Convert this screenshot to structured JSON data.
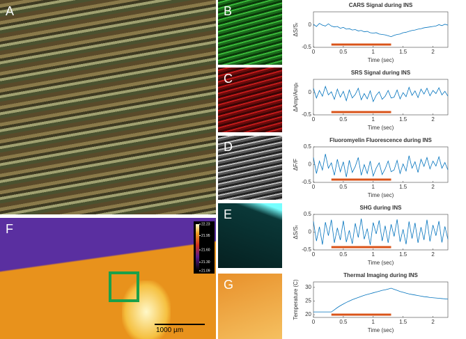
{
  "panels": {
    "A": "A",
    "B": "B",
    "C": "C",
    "D": "D",
    "E": "E",
    "F": "F",
    "G": "G"
  },
  "scale_bar": "1000 µm",
  "colorbar": {
    "lim": [
      21.09,
      22.23
    ],
    "ticks": [
      22.23,
      21.95,
      {
        "value": 21.6,
        "label": "21.60"
      },
      {
        "value": 21.3,
        "label": "21.30"
      },
      21.09
    ]
  },
  "chart_data": [
    {
      "type": "line",
      "title": "CARS Signal during INS",
      "xlabel": "Time (sec)",
      "ylabel": "ΔS/Sᵣ",
      "x": [
        0,
        0.05,
        0.1,
        0.15,
        0.2,
        0.25,
        0.3,
        0.35,
        0.4,
        0.45,
        0.5,
        0.55,
        0.6,
        0.65,
        0.7,
        0.75,
        0.8,
        0.85,
        0.9,
        0.95,
        1,
        1.05,
        1.1,
        1.15,
        1.2,
        1.25,
        1.3,
        1.35,
        1.4,
        1.45,
        1.5,
        1.55,
        1.6,
        1.65,
        1.7,
        1.75,
        1.8,
        1.85,
        1.9,
        1.95,
        2,
        2.05,
        2.1,
        2.15,
        2.2,
        2.25
      ],
      "series": [
        {
          "color": "#0072bd",
          "values": [
            0.02,
            -0.03,
            0.04,
            0.0,
            -0.02,
            0.03,
            -0.02,
            -0.04,
            -0.03,
            -0.07,
            -0.05,
            -0.09,
            -0.08,
            -0.11,
            -0.1,
            -0.13,
            -0.12,
            -0.15,
            -0.14,
            -0.17,
            -0.18,
            -0.17,
            -0.2,
            -0.21,
            -0.22,
            -0.24,
            -0.26,
            -0.23,
            -0.21,
            -0.2,
            -0.17,
            -0.16,
            -0.14,
            -0.12,
            -0.11,
            -0.09,
            -0.08,
            -0.06,
            -0.05,
            -0.04,
            -0.03,
            -0.02,
            0.01,
            -0.01,
            0.02,
            0.0
          ]
        }
      ],
      "xlim": [
        0,
        2.25
      ],
      "xticks": [
        0,
        0.5,
        1,
        1.5,
        2
      ],
      "ylim": [
        -0.5,
        0.3
      ],
      "yticks": [
        -0.5,
        0
      ],
      "highlight_x": [
        0.3,
        1.3
      ],
      "highlight_color": "#d95319"
    },
    {
      "type": "line",
      "title": "SRS Signal during INS",
      "xlabel": "Time (sec)",
      "ylabel": "ΔAmp/Ampᵣ",
      "x": [
        0,
        0.05,
        0.1,
        0.15,
        0.2,
        0.25,
        0.3,
        0.35,
        0.4,
        0.45,
        0.5,
        0.55,
        0.6,
        0.65,
        0.7,
        0.75,
        0.8,
        0.85,
        0.9,
        0.95,
        1,
        1.05,
        1.1,
        1.15,
        1.2,
        1.25,
        1.3,
        1.35,
        1.4,
        1.45,
        1.5,
        1.55,
        1.6,
        1.65,
        1.7,
        1.75,
        1.8,
        1.85,
        1.9,
        1.95,
        2,
        2.05,
        2.1,
        2.15,
        2.2,
        2.25
      ],
      "series": [
        {
          "color": "#0072bd",
          "values": [
            0.1,
            -0.12,
            0.05,
            -0.08,
            0.14,
            -0.05,
            0.02,
            -0.15,
            0.08,
            -0.1,
            0.03,
            -0.18,
            0.06,
            -0.12,
            -0.04,
            0.1,
            -0.16,
            -0.02,
            -0.14,
            0.04,
            -0.2,
            -0.06,
            0.02,
            -0.15,
            -0.08,
            0.05,
            -0.12,
            -0.1,
            0.06,
            -0.14,
            0.0,
            -0.09,
            0.12,
            -0.06,
            0.04,
            -0.11,
            0.08,
            -0.03,
            0.1,
            -0.07,
            0.05,
            -0.02,
            0.11,
            -0.05,
            0.03,
            -0.08
          ]
        }
      ],
      "xlim": [
        0,
        2.25
      ],
      "xticks": [
        0,
        0.5,
        1,
        1.5,
        2
      ],
      "ylim": [
        -0.5,
        0.3
      ],
      "yticks": [
        -0.5,
        0
      ],
      "highlight_x": [
        0.3,
        1.3
      ],
      "highlight_color": "#d95319"
    },
    {
      "type": "line",
      "title": "Fluoromyelin Fluorescence during INS",
      "xlabel": "Time (sec)",
      "ylabel": "ΔF/F",
      "x": [
        0,
        0.05,
        0.1,
        0.15,
        0.2,
        0.25,
        0.3,
        0.35,
        0.4,
        0.45,
        0.5,
        0.55,
        0.6,
        0.65,
        0.7,
        0.75,
        0.8,
        0.85,
        0.9,
        0.95,
        1,
        1.05,
        1.1,
        1.15,
        1.2,
        1.25,
        1.3,
        1.35,
        1.4,
        1.45,
        1.5,
        1.55,
        1.6,
        1.65,
        1.7,
        1.75,
        1.8,
        1.85,
        1.9,
        1.95,
        2,
        2.05,
        2.1,
        2.15,
        2.2,
        2.25
      ],
      "series": [
        {
          "color": "#0072bd",
          "values": [
            0.2,
            -0.25,
            0.1,
            -0.15,
            0.3,
            -0.1,
            0.05,
            -0.3,
            0.15,
            -0.2,
            0.08,
            -0.35,
            0.12,
            -0.22,
            -0.05,
            0.2,
            -0.3,
            0.0,
            -0.25,
            0.1,
            -0.32,
            -0.1,
            0.05,
            -0.28,
            -0.12,
            0.1,
            -0.2,
            -0.15,
            0.12,
            -0.25,
            0.02,
            -0.18,
            0.25,
            -0.1,
            0.08,
            -0.22,
            0.15,
            -0.05,
            0.2,
            -0.12,
            0.1,
            -0.04,
            0.22,
            -0.1,
            0.06,
            -0.15
          ]
        }
      ],
      "xlim": [
        0,
        2.25
      ],
      "xticks": [
        0,
        0.5,
        1,
        1.5,
        2
      ],
      "ylim": [
        -0.5,
        0.5
      ],
      "yticks": [
        -0.5,
        0,
        0.5
      ],
      "highlight_x": [
        0.3,
        1.3
      ],
      "highlight_color": "#d95319"
    },
    {
      "type": "line",
      "title": "SHG during INS",
      "xlabel": "Time (sec)",
      "ylabel": "ΔS/Sᵣ",
      "x": [
        0,
        0.05,
        0.1,
        0.15,
        0.2,
        0.25,
        0.3,
        0.35,
        0.4,
        0.45,
        0.5,
        0.55,
        0.6,
        0.65,
        0.7,
        0.75,
        0.8,
        0.85,
        0.9,
        0.95,
        1,
        1.05,
        1.1,
        1.15,
        1.2,
        1.25,
        1.3,
        1.35,
        1.4,
        1.45,
        1.5,
        1.55,
        1.6,
        1.65,
        1.7,
        1.75,
        1.8,
        1.85,
        1.9,
        1.95,
        2,
        2.05,
        2.1,
        2.15,
        2.2,
        2.25
      ],
      "series": [
        {
          "color": "#0072bd",
          "values": [
            0.3,
            -0.25,
            0.15,
            -0.35,
            0.28,
            -0.1,
            0.35,
            -0.3,
            0.12,
            -0.22,
            0.32,
            -0.28,
            0.05,
            -0.33,
            0.25,
            -0.15,
            0.38,
            -0.2,
            0.1,
            -0.36,
            0.27,
            -0.05,
            0.33,
            -0.25,
            0.18,
            -0.3,
            0.22,
            -0.12,
            0.36,
            -0.27,
            0.08,
            -0.34,
            0.3,
            -0.18,
            0.26,
            -0.3,
            0.14,
            -0.22,
            0.35,
            -0.26,
            0.2,
            -0.1,
            0.31,
            -0.29,
            0.16,
            -0.2
          ]
        }
      ],
      "xlim": [
        0,
        2.25
      ],
      "xticks": [
        0,
        0.5,
        1,
        1.5,
        2
      ],
      "ylim": [
        -0.5,
        0.5
      ],
      "yticks": [
        -0.5,
        0,
        0.5
      ],
      "highlight_x": [
        0.3,
        1.3
      ],
      "highlight_color": "#d95319"
    },
    {
      "type": "line",
      "title": "Thermal Imaging during INS",
      "xlabel": "Time (sec)",
      "ylabel": "Temperature (C)",
      "x": [
        0,
        0.05,
        0.1,
        0.15,
        0.2,
        0.25,
        0.3,
        0.35,
        0.4,
        0.45,
        0.5,
        0.55,
        0.6,
        0.65,
        0.7,
        0.75,
        0.8,
        0.85,
        0.9,
        0.95,
        1,
        1.05,
        1.1,
        1.15,
        1.2,
        1.25,
        1.3,
        1.35,
        1.4,
        1.45,
        1.5,
        1.55,
        1.6,
        1.65,
        1.7,
        1.75,
        1.8,
        1.85,
        1.9,
        1.95,
        2,
        2.05,
        2.1,
        2.15,
        2.2,
        2.25
      ],
      "series": [
        {
          "color": "#0072bd",
          "values": [
            21,
            21,
            21,
            21,
            21,
            21,
            21,
            21.8,
            22.6,
            23.3,
            23.9,
            24.5,
            25.0,
            25.5,
            25.9,
            26.3,
            26.7,
            27.1,
            27.4,
            27.7,
            28.0,
            28.3,
            28.6,
            28.9,
            29.1,
            29.4,
            29.7,
            29.3,
            28.9,
            28.5,
            28.2,
            27.9,
            27.6,
            27.4,
            27.2,
            27.0,
            26.8,
            26.6,
            26.5,
            26.3,
            26.2,
            26.1,
            26.0,
            25.9,
            25.8,
            25.7
          ]
        }
      ],
      "xlim": [
        0,
        2.25
      ],
      "xticks": [
        0,
        0.5,
        1,
        1.5,
        2
      ],
      "ylim": [
        19,
        32
      ],
      "yticks": [
        20,
        25,
        30
      ],
      "highlight_x": [
        0.3,
        1.3
      ],
      "highlight_color": "#d95319"
    }
  ]
}
